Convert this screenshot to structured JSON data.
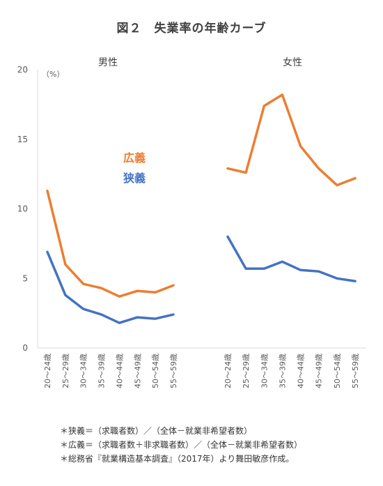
{
  "chart_data": {
    "type": "line",
    "title": "図２　失業率の年齢カーブ",
    "y_unit": "（%）",
    "ylim": [
      0,
      20
    ],
    "yticks": [
      0,
      5,
      10,
      15,
      20
    ],
    "grid": false,
    "categories": [
      "20～24歳",
      "25～29歳",
      "30～34歳",
      "35～39歳",
      "40～44歳",
      "45～49歳",
      "50～54歳",
      "55～59歳"
    ],
    "legend_labels": [
      {
        "name": "広義",
        "color": "#ED7D31"
      },
      {
        "name": "狭義",
        "color": "#4472C4"
      }
    ],
    "panels": [
      {
        "title": "男性",
        "series": [
          {
            "name": "広義",
            "color": "#ED7D31",
            "values": [
              11.3,
              6.0,
              4.6,
              4.3,
              3.7,
              4.1,
              4.0,
              4.5
            ]
          },
          {
            "name": "狭義",
            "color": "#4472C4",
            "values": [
              6.9,
              3.8,
              2.8,
              2.4,
              1.8,
              2.2,
              2.1,
              2.4
            ]
          }
        ]
      },
      {
        "title": "女性",
        "series": [
          {
            "name": "広義",
            "color": "#ED7D31",
            "values": [
              12.9,
              12.6,
              17.4,
              18.2,
              14.5,
              12.9,
              11.7,
              12.2
            ]
          },
          {
            "name": "狭義",
            "color": "#4472C4",
            "values": [
              8.0,
              5.7,
              5.7,
              6.2,
              5.6,
              5.5,
              5.0,
              4.8
            ]
          }
        ]
      }
    ]
  },
  "notes": [
    "＊狭義＝（求職者数）／（全体－就業非希望者数）",
    "＊広義＝（求職者数＋非求職者数）／（全体－就業非希望者数）",
    "＊総務省『就業構造基本調査』（2017年）より舞田敏彦作成。"
  ]
}
